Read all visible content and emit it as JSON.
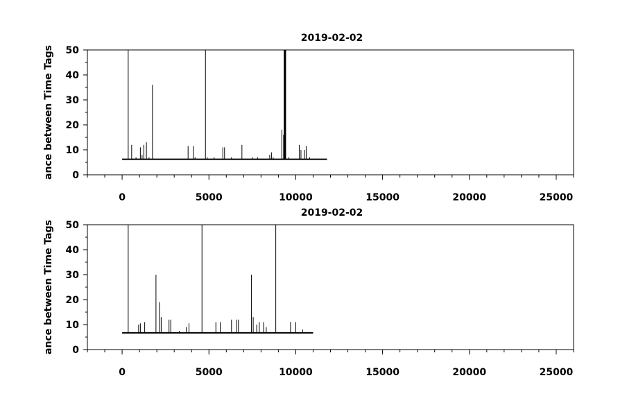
{
  "chart_data": [
    {
      "type": "line",
      "title": "2019-02-02",
      "xlabel": "",
      "ylabel": "ance between Time Tags",
      "xlim": [
        -2000,
        26000
      ],
      "ylim": [
        0,
        50
      ],
      "xticks": [
        0,
        5000,
        10000,
        15000,
        20000,
        25000
      ],
      "yticks": [
        0,
        10,
        20,
        30,
        40,
        50
      ],
      "grid": false,
      "baseline": {
        "x_start": 0,
        "x_end": 11800,
        "y": 6.2
      },
      "spikes": [
        {
          "x": 350,
          "y": 50
        },
        {
          "x": 550,
          "y": 12
        },
        {
          "x": 800,
          "y": 7
        },
        {
          "x": 1050,
          "y": 11
        },
        {
          "x": 1150,
          "y": 8
        },
        {
          "x": 1250,
          "y": 12
        },
        {
          "x": 1400,
          "y": 13
        },
        {
          "x": 1550,
          "y": 7
        },
        {
          "x": 1750,
          "y": 36
        },
        {
          "x": 3800,
          "y": 11.5
        },
        {
          "x": 4100,
          "y": 11.5
        },
        {
          "x": 4200,
          "y": 7
        },
        {
          "x": 4800,
          "y": 50
        },
        {
          "x": 4900,
          "y": 7
        },
        {
          "x": 5300,
          "y": 7
        },
        {
          "x": 5800,
          "y": 11
        },
        {
          "x": 5900,
          "y": 11
        },
        {
          "x": 6300,
          "y": 7
        },
        {
          "x": 6900,
          "y": 12
        },
        {
          "x": 7500,
          "y": 7
        },
        {
          "x": 7800,
          "y": 7
        },
        {
          "x": 8500,
          "y": 8
        },
        {
          "x": 8600,
          "y": 9
        },
        {
          "x": 8700,
          "y": 7
        },
        {
          "x": 9200,
          "y": 18
        },
        {
          "x": 9300,
          "y": 16
        },
        {
          "x": 9350,
          "y": 50
        },
        {
          "x": 9400,
          "y": 50
        },
        {
          "x": 9600,
          "y": 7
        },
        {
          "x": 10200,
          "y": 12
        },
        {
          "x": 10300,
          "y": 10
        },
        {
          "x": 10500,
          "y": 10
        },
        {
          "x": 10600,
          "y": 11.5
        },
        {
          "x": 10800,
          "y": 7
        }
      ]
    },
    {
      "type": "line",
      "title": "2019-02-02",
      "xlabel": "",
      "ylabel": "ance between Time Tags",
      "xlim": [
        -2000,
        26000
      ],
      "ylim": [
        0,
        50
      ],
      "xticks": [
        0,
        5000,
        10000,
        15000,
        20000,
        25000
      ],
      "yticks": [
        0,
        10,
        20,
        30,
        40,
        50
      ],
      "grid": false,
      "baseline": {
        "x_start": 0,
        "x_end": 11000,
        "y": 6.7
      },
      "spikes": [
        {
          "x": 350,
          "y": 50
        },
        {
          "x": 950,
          "y": 10
        },
        {
          "x": 1050,
          "y": 10.5
        },
        {
          "x": 1300,
          "y": 11
        },
        {
          "x": 1950,
          "y": 30
        },
        {
          "x": 2150,
          "y": 19
        },
        {
          "x": 2250,
          "y": 13
        },
        {
          "x": 2700,
          "y": 12
        },
        {
          "x": 2800,
          "y": 12
        },
        {
          "x": 3300,
          "y": 7.5
        },
        {
          "x": 3700,
          "y": 9
        },
        {
          "x": 3850,
          "y": 10.5
        },
        {
          "x": 4600,
          "y": 50
        },
        {
          "x": 5400,
          "y": 11
        },
        {
          "x": 5650,
          "y": 11
        },
        {
          "x": 6300,
          "y": 12
        },
        {
          "x": 6600,
          "y": 12
        },
        {
          "x": 6700,
          "y": 12
        },
        {
          "x": 7450,
          "y": 30
        },
        {
          "x": 7550,
          "y": 13
        },
        {
          "x": 7750,
          "y": 10
        },
        {
          "x": 7900,
          "y": 11
        },
        {
          "x": 8150,
          "y": 11
        },
        {
          "x": 8300,
          "y": 9
        },
        {
          "x": 8850,
          "y": 50
        },
        {
          "x": 9700,
          "y": 11
        },
        {
          "x": 10000,
          "y": 11
        },
        {
          "x": 10400,
          "y": 8
        }
      ]
    }
  ]
}
